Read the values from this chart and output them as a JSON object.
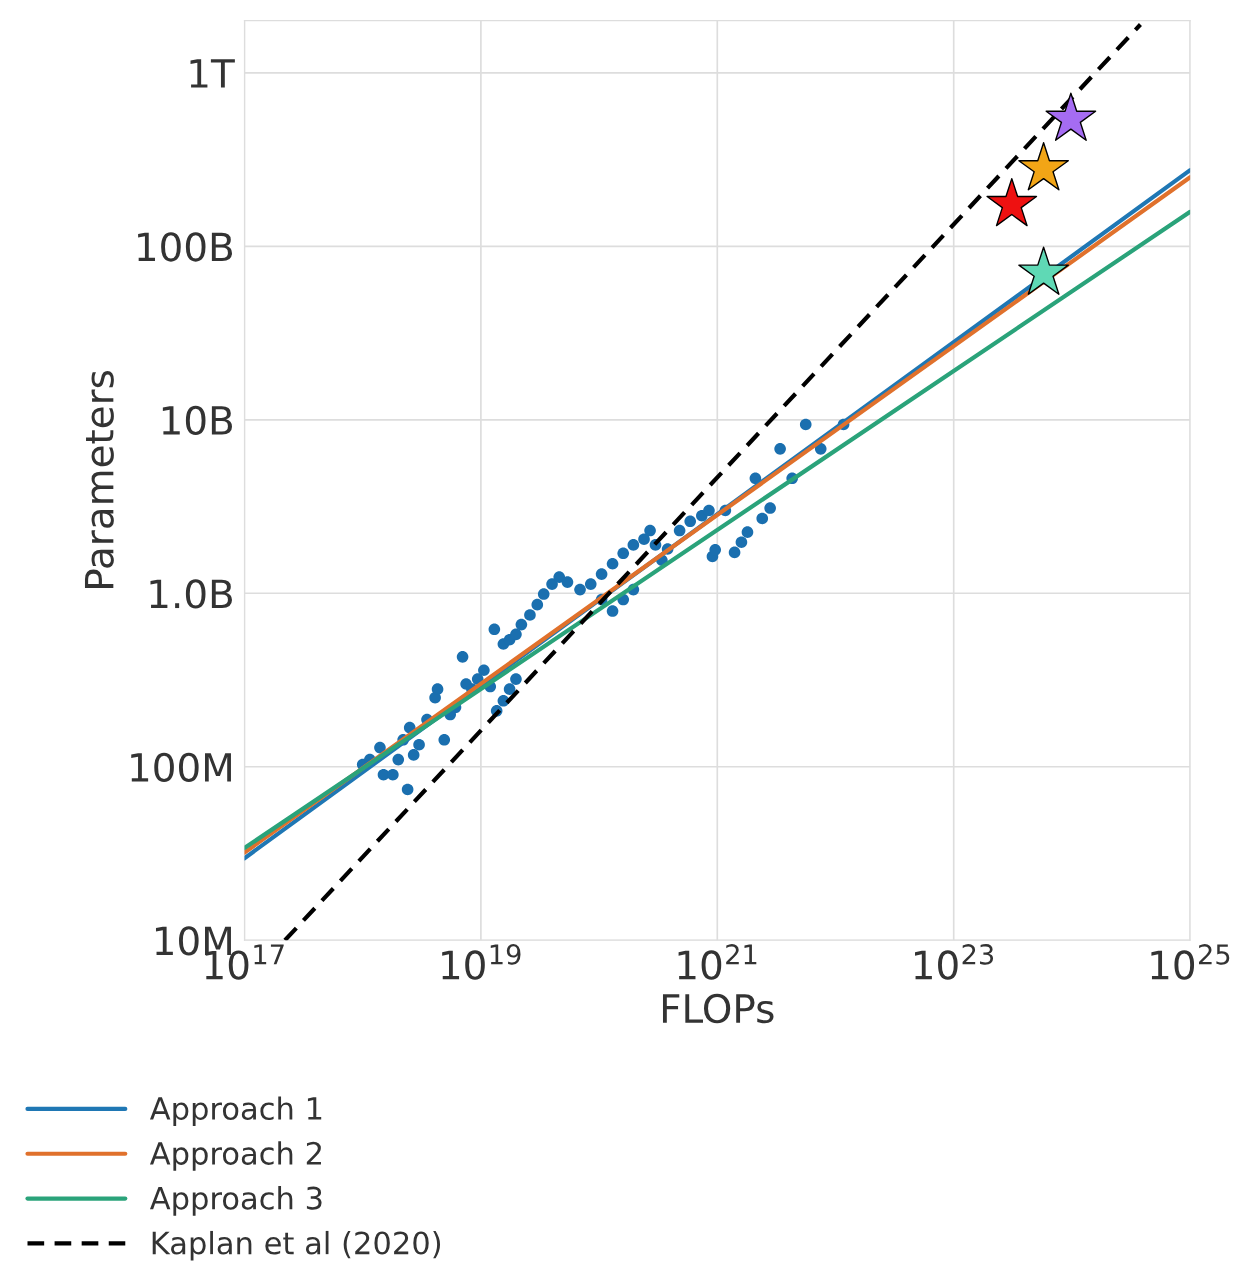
{
  "chart_data": {
    "type": "scatter",
    "xlabel": "FLOPs",
    "ylabel": "Parameters",
    "log": "xy",
    "grid": true,
    "legend": "bottom left",
    "xlim": [
      1e+17,
      1e+25
    ],
    "ylim": [
      10000000.0,
      2000000000000.0
    ],
    "xticks": [
      {
        "value": 1e+17,
        "label": "10$^{17}$"
      },
      {
        "value": 1e+19,
        "label": "10$^{19}$"
      },
      {
        "value": 1e+21,
        "label": "10$^{21}$"
      },
      {
        "value": 1e+23,
        "label": "10$^{23}$"
      },
      {
        "value": 1e+25,
        "label": "10$^{25}$"
      }
    ],
    "yticks": [
      {
        "value": 10000000.0,
        "label": "10M"
      },
      {
        "value": 100000000.0,
        "label": "100M"
      },
      {
        "value": 1000000000.0,
        "label": "1.0B"
      },
      {
        "value": 10000000000.0,
        "label": "10B"
      },
      {
        "value": 100000000000.0,
        "label": "100B"
      },
      {
        "value": 1000000000000.0,
        "label": "1T"
      }
    ],
    "series": [
      {
        "marker": "circle",
        "color": "#1a6faf",
        "x": [
          1e+18,
          1.15e+18,
          1.4e+18,
          1.5e+18,
          1.8e+18,
          2e+18,
          2.2e+18,
          2.4e+18,
          2.5e+18,
          2.7e+18,
          3e+18,
          3.5e+18,
          4.1e+18,
          4.3e+18,
          4.9e+18,
          5.5e+18,
          6.1e+18,
          7e+18,
          7.5e+18,
          8.4e+18,
          9.4e+18,
          1.06e+19,
          1.2e+19,
          1.36e+19,
          1.55e+19,
          1.75e+19,
          1.98e+19,
          1.3e+19,
          1.55e+19,
          1.75e+19,
          1.98e+19,
          2.2e+19,
          2.6e+19,
          3e+19,
          3.4e+19,
          4e+19,
          4.6e+19,
          5.4e+19,
          6.9e+19,
          8.5e+19,
          1.05e+20,
          1.3e+20,
          1.6e+20,
          1.95e+20,
          2.4e+20,
          1.05e+20,
          1.3e+20,
          1.6e+20,
          1.95e+20,
          2.7e+20,
          3e+20,
          3.4e+20,
          3.8e+20,
          4.8e+20,
          5.9e+20,
          7.4e+20,
          8.5e+20,
          9.1e+20,
          9.6e+20,
          1.17e+21,
          1.4e+21,
          1.6e+21,
          1.8e+21,
          2.1e+21,
          2.4e+21,
          2.8e+21,
          3.4e+21,
          4.3e+21,
          5.6e+21,
          7.5e+21,
          1.17e+22
        ],
        "values": [
          103000000.0,
          110000000.0,
          129000000.0,
          90000000.0,
          90000000.0,
          110000000.0,
          143000000.0,
          74000000.0,
          168000000.0,
          117000000.0,
          134000000.0,
          187000000.0,
          250000000.0,
          280000000.0,
          143000000.0,
          200000000.0,
          220000000.0,
          430000000.0,
          300000000.0,
          280000000.0,
          320000000.0,
          360000000.0,
          290000000.0,
          210000000.0,
          240000000.0,
          280000000.0,
          320000000.0,
          620000000.0,
          510000000.0,
          540000000.0,
          580000000.0,
          660000000.0,
          750000000.0,
          860000000.0,
          990000000.0,
          1130000000.0,
          1240000000.0,
          1160000000.0,
          1050000000.0,
          1130000000.0,
          1290000000.0,
          1480000000.0,
          1700000000.0,
          1900000000.0,
          2050000000.0,
          920000000.0,
          790000000.0,
          920000000.0,
          1050000000.0,
          2300000000.0,
          1900000000.0,
          1550000000.0,
          1800000000.0,
          2300000000.0,
          2600000000.0,
          2800000000.0,
          3000000000.0,
          1630000000.0,
          1780000000.0,
          3000000000.0,
          1720000000.0,
          1970000000.0,
          2250000000.0,
          4600000000.0,
          2700000000.0,
          3100000000.0,
          6800000000.0,
          4600000000.0,
          9400000000.0,
          6800000000.0,
          9400000000.0
        ]
      },
      {
        "type": "line",
        "name": "Approach 1",
        "color": "#1f77b4",
        "line_style": "solid",
        "x": [
          1e+17,
          1e+25
        ],
        "values": [
          29700000.0,
          275000000000.0
        ]
      },
      {
        "type": "line",
        "name": "Approach 2",
        "color": "#e0712c",
        "line_style": "solid",
        "x": [
          1e+17,
          1e+25
        ],
        "values": [
          32000000.0,
          250000000000.0
        ]
      },
      {
        "type": "line",
        "name": "Approach 3",
        "color": "#2aa37a",
        "line_style": "solid",
        "x": [
          1e+17,
          1e+25
        ],
        "values": [
          34000000.0,
          158000000000.0
        ]
      },
      {
        "type": "line",
        "name": "Kaplan et al (2020)",
        "color": "#000000",
        "line_style": "dashed",
        "x": [
          2.2e+17,
          3.8e+24
        ],
        "values": [
          10000000.0,
          1900000000000.0
        ]
      },
      {
        "type": "scatter",
        "marker": "star",
        "color": "#5fd9b5",
        "x": [
          5.76e+23
        ],
        "values": [
          70000000000.0
        ]
      },
      {
        "type": "scatter",
        "marker": "star",
        "color": "#f2a516",
        "x": [
          5.76e+23
        ],
        "values": [
          280000000000.0
        ]
      },
      {
        "type": "scatter",
        "marker": "star",
        "color": "#ee1111",
        "x": [
          3.1e+23
        ],
        "values": [
          174000000000.0
        ]
      },
      {
        "type": "scatter",
        "marker": "star",
        "color": "#a56cf2",
        "x": [
          9.8e+23
        ],
        "values": [
          540000000000.0
        ]
      }
    ]
  }
}
